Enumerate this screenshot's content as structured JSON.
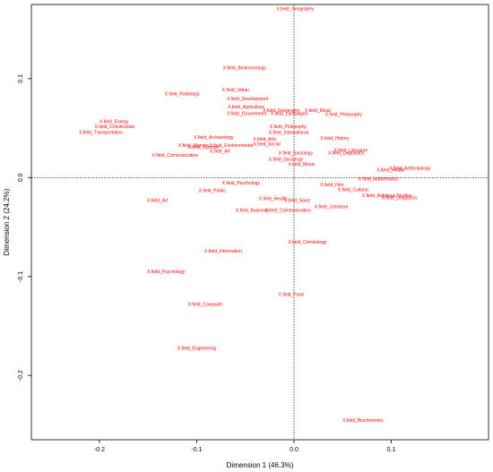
{
  "chart_data": {
    "type": "scatter",
    "title": "",
    "xlabel": "Dimension 1 (46.3%)",
    "ylabel": "Dimension 2 (24.2%)",
    "xlim": [
      -0.27,
      0.2
    ],
    "ylim": [
      -0.265,
      0.175
    ],
    "xticks": [
      {
        "v": -0.2,
        "label": "-0.2"
      },
      {
        "v": -0.1,
        "label": "-0.1"
      },
      {
        "v": 0.0,
        "label": "0.0"
      },
      {
        "v": 0.1,
        "label": "0.1"
      }
    ],
    "yticks": [
      {
        "v": 0.1,
        "label": "0.1"
      },
      {
        "v": 0.0,
        "label": "0.0"
      },
      {
        "v": -0.1,
        "label": "-0.1"
      },
      {
        "v": -0.2,
        "label": "-0.2"
      }
    ],
    "reference_lines": {
      "x": 0,
      "y": 0,
      "style": "dotted"
    },
    "label_color": "#ff0000",
    "points": [
      {
        "label": "X.field_Geography",
        "x": -0.018,
        "y": 0.171
      },
      {
        "label": "X.field_Biotechnology",
        "x": -0.073,
        "y": 0.111
      },
      {
        "label": "X.field_Urban",
        "x": -0.074,
        "y": 0.089
      },
      {
        "label": "X.field_Radiology",
        "x": -0.133,
        "y": 0.085
      },
      {
        "label": "X.field_Development",
        "x": -0.069,
        "y": 0.08
      },
      {
        "label": "X.field_Agriculture",
        "x": -0.068,
        "y": 0.072
      },
      {
        "label": "X.field_Geography",
        "x": -0.032,
        "y": 0.068
      },
      {
        "label": "X.field_Music",
        "x": 0.011,
        "y": 0.068
      },
      {
        "label": "X.field_Government",
        "x": -0.069,
        "y": 0.065
      },
      {
        "label": "X.field_Languages",
        "x": -0.024,
        "y": 0.065
      },
      {
        "label": "X.field_Philosophy",
        "x": 0.032,
        "y": 0.064
      },
      {
        "label": "X.field_Energy",
        "x": -0.2,
        "y": 0.057
      },
      {
        "label": "X.field_Construction",
        "x": -0.205,
        "y": 0.052
      },
      {
        "label": "X.field_Transportation",
        "x": -0.221,
        "y": 0.046
      },
      {
        "label": "X.field_Philosophy",
        "x": -0.025,
        "y": 0.052
      },
      {
        "label": "X.field_International",
        "x": -0.026,
        "y": 0.046
      },
      {
        "label": "X.field_Archaeology",
        "x": -0.103,
        "y": 0.041
      },
      {
        "label": "X.field_Arts",
        "x": -0.042,
        "y": 0.039
      },
      {
        "label": "X.field_History",
        "x": 0.027,
        "y": 0.04
      },
      {
        "label": "X.field_Science",
        "x": -0.109,
        "y": 0.031
      },
      {
        "label": "X.field_Social",
        "x": -0.042,
        "y": 0.034
      },
      {
        "label": "X.field_Literature",
        "x": 0.041,
        "y": 0.028
      },
      {
        "label": "X.field_Art",
        "x": -0.087,
        "y": 0.027
      },
      {
        "label": "X.field_Sociology",
        "x": -0.016,
        "y": 0.025
      },
      {
        "label": "X.field_Linguistics",
        "x": 0.035,
        "y": 0.025
      },
      {
        "label": "X.field_Communication",
        "x": -0.146,
        "y": 0.023
      },
      {
        "label": "X.field_Sociology",
        "x": -0.026,
        "y": 0.019
      },
      {
        "label": "X.field_Music",
        "x": -0.006,
        "y": 0.014
      },
      {
        "label": "X.field_Anthropology",
        "x": 0.098,
        "y": 0.01
      },
      {
        "label": "X.field_Health",
        "x": 0.085,
        "y": 0.008
      },
      {
        "label": "X.field_Women",
        "x": -0.119,
        "y": 0.033
      },
      {
        "label": "X.field_Environmental",
        "x": -0.087,
        "y": 0.033
      },
      {
        "label": "X.field_Mathematics",
        "x": 0.066,
        "y": -0.001
      },
      {
        "label": "X.field_Psychology",
        "x": -0.074,
        "y": -0.005
      },
      {
        "label": "X.field_Film",
        "x": 0.027,
        "y": -0.007
      },
      {
        "label": "X.field_Public",
        "x": -0.098,
        "y": -0.013
      },
      {
        "label": "X.field_Cultural",
        "x": 0.045,
        "y": -0.012
      },
      {
        "label": "X.field_Religious Studies",
        "x": 0.07,
        "y": -0.018
      },
      {
        "label": "X.field_Linguistics",
        "x": 0.09,
        "y": -0.02
      },
      {
        "label": "X.field_Art",
        "x": -0.151,
        "y": -0.023
      },
      {
        "label": "X.field_Health",
        "x": -0.036,
        "y": -0.021
      },
      {
        "label": "X.field_Sport",
        "x": -0.01,
        "y": -0.023
      },
      {
        "label": "X.field_Literature",
        "x": 0.021,
        "y": -0.029
      },
      {
        "label": "X.field_Business",
        "x": -0.06,
        "y": -0.033
      },
      {
        "label": "X.field_Communication",
        "x": -0.03,
        "y": -0.033
      },
      {
        "label": "X.field_Criminology",
        "x": -0.006,
        "y": -0.065
      },
      {
        "label": "X.field_Information",
        "x": -0.092,
        "y": -0.074
      },
      {
        "label": "X.field_Psychology",
        "x": -0.151,
        "y": -0.095
      },
      {
        "label": "X.field_Food",
        "x": -0.016,
        "y": -0.118
      },
      {
        "label": "X.field_Computer",
        "x": -0.109,
        "y": -0.128
      },
      {
        "label": "X.field_Engineering",
        "x": -0.12,
        "y": -0.172
      },
      {
        "label": "X.field_Biochemistry",
        "x": 0.05,
        "y": -0.245
      }
    ]
  }
}
